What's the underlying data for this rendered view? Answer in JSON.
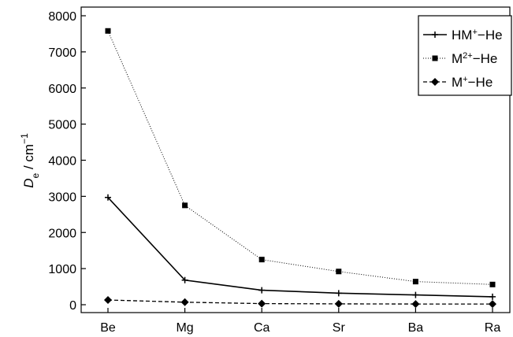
{
  "chart_data": {
    "type": "line",
    "categories": [
      "Be",
      "Mg",
      "Ca",
      "Sr",
      "Ba",
      "Ra"
    ],
    "ylabel": {
      "main": "D",
      "sub": "e",
      "unit": " / cm",
      "sup": "−1"
    },
    "ylim": [
      0,
      8000
    ],
    "yticks": [
      0,
      1000,
      2000,
      3000,
      4000,
      5000,
      6000,
      7000,
      8000
    ],
    "grid": false,
    "legend_position": "top-right",
    "series": [
      {
        "key": "hm",
        "name_main": "HM",
        "name_sup": "+",
        "name_tail": "−He",
        "values": [
          2970,
          680,
          400,
          320,
          270,
          220
        ],
        "line_style": "solid",
        "marker": "plus",
        "color": "#000000"
      },
      {
        "key": "m2",
        "name_main": "M",
        "name_sup": "2+",
        "name_tail": "−He",
        "values": [
          7580,
          2750,
          1250,
          920,
          640,
          560
        ],
        "line_style": "dotted",
        "marker": "square",
        "color": "#000000"
      },
      {
        "key": "m1",
        "name_main": "M",
        "name_sup": "+",
        "name_tail": "−He",
        "values": [
          130,
          70,
          30,
          25,
          20,
          20
        ],
        "line_style": "dashed",
        "marker": "diamond",
        "color": "#000000"
      }
    ]
  }
}
